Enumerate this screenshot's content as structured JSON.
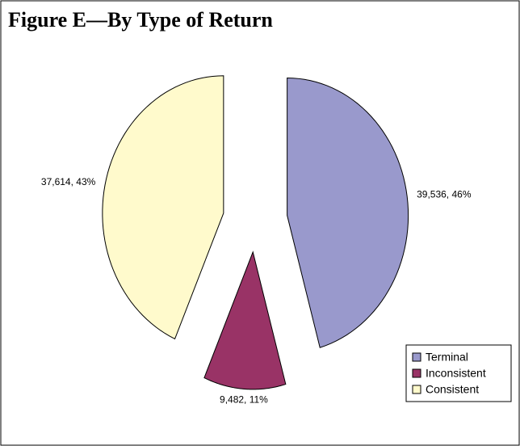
{
  "chart_data": {
    "type": "pie",
    "title": "Figure E—By Type of Return",
    "categories": [
      "Terminal",
      "Inconsistent",
      "Consistent"
    ],
    "values": [
      39536,
      9482,
      37614
    ],
    "value_labels": [
      "39,536, 46%",
      "9,482, 11%",
      "37,614, 43%"
    ],
    "colors": [
      "#9999cc",
      "#993366",
      "#fffacc"
    ],
    "legend": "lower right"
  }
}
